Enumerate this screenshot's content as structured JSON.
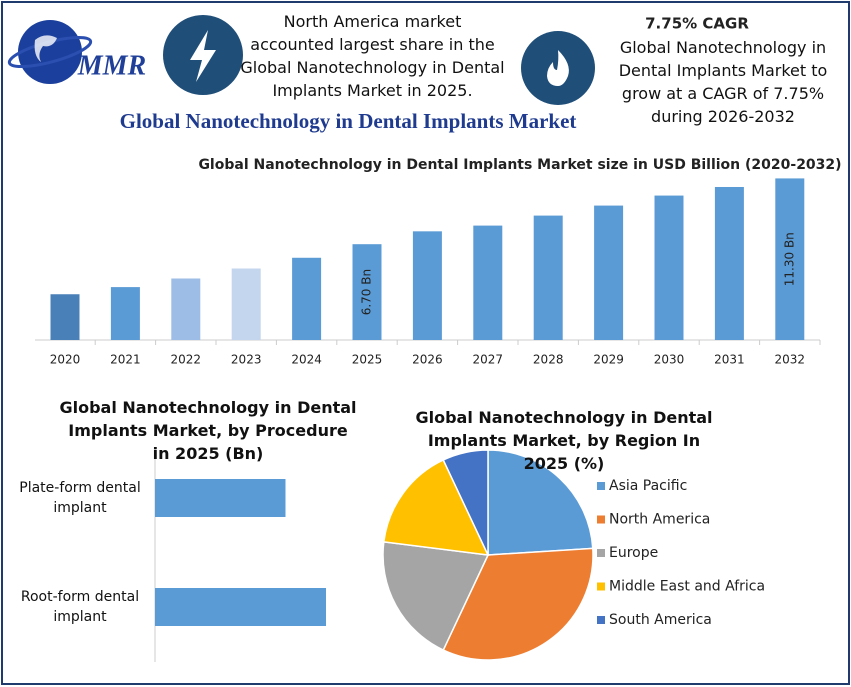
{
  "header": {
    "logo": "MMR",
    "title": "Global Nanotechnology in Dental Implants Market",
    "fact1": "North America market accounted largest share in the Global Nanotechnology in Dental Implants Market in 2025.",
    "fact2_title": "7.75% CAGR",
    "fact2": "Global Nanotechnology in Dental Implants Market to grow at a CAGR of 7.75% during 2026-2032"
  },
  "chart_data": [
    {
      "type": "bar",
      "orientation": "vertical",
      "title": "Global Nanotechnology in Dental Implants Market size in USD Billion (2020-2032)",
      "categories": [
        "2020",
        "2021",
        "2022",
        "2023",
        "2024",
        "2025",
        "2026",
        "2027",
        "2028",
        "2029",
        "2030",
        "2031",
        "2032"
      ],
      "values": [
        3.2,
        3.7,
        4.3,
        5.0,
        5.75,
        6.7,
        7.6,
        8.0,
        8.7,
        9.4,
        10.1,
        10.7,
        11.3
      ],
      "value_labels": [
        null,
        null,
        null,
        null,
        null,
        "6.70 Bn",
        null,
        null,
        null,
        null,
        null,
        null,
        "11.30 Bn"
      ],
      "colors": [
        "#4a80b8",
        "#5b9bd5",
        "#9dbde6",
        "#c3d6ee",
        "#5b9bd5",
        "#5b9bd5",
        "#5b9bd5",
        "#5b9bd5",
        "#5b9bd5",
        "#5b9bd5",
        "#5b9bd5",
        "#5b9bd5",
        "#5b9bd5"
      ]
    },
    {
      "type": "bar",
      "orientation": "horizontal",
      "title": "Global Nanotechnology in Dental Implants Market, by Procedure in 2025 (Bn)",
      "categories": [
        "Plate-form dental implant",
        "Root-form dental implant"
      ],
      "values": [
        2.9,
        3.8
      ],
      "color": "#5b9bd5"
    },
    {
      "type": "pie",
      "title": "Global Nanotechnology in Dental Implants Market, by Region In 2025 (%)",
      "categories": [
        "Asia Pacific",
        "North America",
        "Europe",
        "Middle East and Africa",
        "South America"
      ],
      "values": [
        24,
        33,
        20,
        16,
        7
      ],
      "colors": [
        "#5b9bd5",
        "#ed7d31",
        "#a5a5a5",
        "#ffc000",
        "#4472c4"
      ],
      "legend": "right"
    }
  ]
}
